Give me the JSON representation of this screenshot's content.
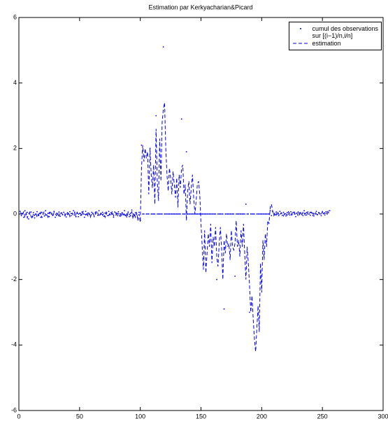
{
  "chart_data": {
    "type": "line",
    "title": "Estimation par Kerkyacharian&Picard",
    "x": [
      1,
      2,
      3,
      4,
      5,
      6,
      7,
      8,
      9,
      10,
      11,
      12,
      13,
      14,
      15,
      16,
      17,
      18,
      19,
      20,
      21,
      22,
      23,
      24,
      25,
      26,
      27,
      28,
      29,
      30,
      31,
      32,
      33,
      34,
      35,
      36,
      37,
      38,
      39,
      40,
      41,
      42,
      43,
      44,
      45,
      46,
      47,
      48,
      49,
      50,
      51,
      52,
      53,
      54,
      55,
      56,
      57,
      58,
      59,
      60,
      61,
      62,
      63,
      64,
      65,
      66,
      67,
      68,
      69,
      70,
      71,
      72,
      73,
      74,
      75,
      76,
      77,
      78,
      79,
      80,
      81,
      82,
      83,
      84,
      85,
      86,
      87,
      88,
      89,
      90,
      91,
      92,
      93,
      94,
      95,
      96,
      97,
      98,
      99,
      100,
      101,
      102,
      103,
      104,
      105,
      106,
      107,
      108,
      109,
      110,
      111,
      112,
      113,
      114,
      115,
      116,
      117,
      118,
      119,
      120,
      121,
      122,
      123,
      124,
      125,
      126,
      127,
      128,
      129,
      130,
      131,
      132,
      133,
      134,
      135,
      136,
      137,
      138,
      139,
      140,
      141,
      142,
      143,
      144,
      145,
      146,
      147,
      148,
      149,
      150,
      151,
      152,
      153,
      154,
      155,
      156,
      157,
      158,
      159,
      160,
      161,
      162,
      163,
      164,
      165,
      166,
      167,
      168,
      169,
      170,
      171,
      172,
      173,
      174,
      175,
      176,
      177,
      178,
      179,
      180,
      181,
      182,
      183,
      184,
      185,
      186,
      187,
      188,
      189,
      190,
      191,
      192,
      193,
      194,
      195,
      196,
      197,
      198,
      199,
      200,
      201,
      202,
      203,
      204,
      205,
      206,
      207,
      208,
      209,
      210,
      211,
      212,
      213,
      214,
      215,
      216,
      217,
      218,
      219,
      220,
      221,
      222,
      223,
      224,
      225,
      226,
      227,
      228,
      229,
      230,
      231,
      232,
      233,
      234,
      235,
      236,
      237,
      238,
      239,
      240,
      241,
      242,
      243,
      244,
      245,
      246,
      247,
      248,
      249,
      250,
      251,
      252,
      253,
      254,
      255,
      256
    ],
    "series": [
      {
        "name": "cumul des observations\nsur [(i−1)/n,i/n]",
        "color": "#0000ff",
        "style": "dots",
        "values": [
          0.08,
          -0.05,
          0.02,
          -0.1,
          0.1,
          -0.02,
          0.05,
          -0.15,
          0.0,
          0.06,
          -0.08,
          0.04,
          -0.12,
          0.0,
          0.07,
          -0.05,
          0.02,
          -0.1,
          0.05,
          0.0,
          -0.06,
          0.1,
          -0.03,
          0.02,
          -0.08,
          0.05,
          0.0,
          -0.04,
          0.08,
          -0.1,
          0.02,
          0.0,
          0.06,
          -0.07,
          0.03,
          -0.02,
          0.05,
          0.0,
          -0.09,
          0.04,
          0.0,
          0.07,
          -0.05,
          0.02,
          0.1,
          -0.03,
          0.0,
          0.05,
          -0.08,
          0.02,
          -0.04,
          0.06,
          0.0,
          -0.1,
          0.08,
          -0.02,
          0.03,
          0.0,
          -0.06,
          0.05,
          0.02,
          -0.08,
          0.0,
          0.06,
          -0.04,
          0.1,
          -0.02,
          0.0,
          0.05,
          -0.07,
          0.03,
          0.0,
          -0.05,
          0.08,
          -0.02,
          0.04,
          0.0,
          -0.1,
          0.06,
          -0.03,
          0.02,
          0.07,
          -0.06,
          0.0,
          0.04,
          -0.02,
          0.1,
          -0.05,
          0.0,
          0.06,
          -0.08,
          0.02,
          0.12,
          0.0,
          -0.05,
          0.04,
          0.0,
          -0.15,
          0.05,
          -0.2,
          2.1,
          0,
          0,
          1.9,
          0,
          0,
          0,
          2.0,
          0,
          0,
          0,
          0,
          3.0,
          0,
          0,
          0,
          0,
          0,
          5.1,
          0,
          0,
          0,
          0,
          0,
          0,
          0,
          0,
          0,
          0,
          0,
          0,
          0,
          0,
          2.9,
          0,
          0,
          0,
          1.9,
          0,
          0,
          0,
          0,
          0,
          0,
          0,
          0,
          0,
          0,
          0,
          0,
          0,
          0,
          0,
          0,
          0,
          0,
          0,
          0,
          0,
          0,
          0,
          0,
          -2.0,
          0,
          0,
          0,
          0,
          0,
          -2.9,
          0,
          0,
          0,
          0,
          0,
          0,
          0,
          0,
          -1.9,
          0,
          0,
          0,
          0,
          0,
          0,
          0,
          0,
          0.3,
          0,
          0,
          -3.0,
          0,
          0,
          0,
          0,
          -4.1,
          0,
          0,
          0,
          0,
          0,
          0,
          0,
          0,
          0,
          0,
          0,
          0.1,
          -0.05,
          0.08,
          0.0,
          -0.03,
          0.06,
          0.0,
          -0.05,
          0.08,
          0.02,
          -0.04,
          0.05,
          0.0,
          -0.06,
          0.04,
          0.0,
          -0.03,
          0.07,
          -0.02,
          0.05,
          0.0,
          -0.08,
          0.03,
          0.06,
          -0.02,
          0.04,
          0.0,
          -0.05,
          0.1,
          0.02,
          -0.03,
          0.06,
          0.0,
          -0.04,
          0.05,
          0.02,
          -0.06,
          0.0,
          0.08,
          -0.02,
          0.04,
          0.0,
          -0.05,
          0.06,
          0.02,
          -0.03,
          0.07,
          0.0,
          0.04,
          0.1
        ]
      },
      {
        "name": "estimation",
        "color": "#0000ff",
        "style": "dashed",
        "values": [
          0.05,
          0.02,
          -0.05,
          0.08,
          -0.1,
          0.03,
          -0.12,
          0.0,
          0.06,
          -0.08,
          -0.15,
          0.02,
          -0.05,
          0.04,
          -0.1,
          0.0,
          -0.06,
          0.05,
          -0.12,
          0.02,
          0.08,
          -0.04,
          0.0,
          -0.1,
          0.05,
          -0.02,
          0.03,
          -0.08,
          0.06,
          0.0,
          -0.05,
          0.04,
          -0.1,
          0.02,
          0.07,
          -0.03,
          0.0,
          -0.06,
          0.04,
          -0.02,
          0.05,
          -0.08,
          0.02,
          0.0,
          -0.05,
          0.06,
          -0.1,
          0.03,
          0.0,
          -0.04,
          0.02,
          -0.06,
          0.08,
          0.0,
          -0.03,
          0.05,
          -0.08,
          0.02,
          -0.1,
          0.04,
          0.0,
          -0.05,
          0.06,
          -0.02,
          0.03,
          -0.08,
          0.0,
          0.05,
          -0.04,
          0.02,
          -0.1,
          0.06,
          0.0,
          -0.05,
          0.03,
          -0.02,
          0.08,
          -0.06,
          0.0,
          0.04,
          -0.08,
          0.02,
          0.05,
          -0.1,
          0.0,
          0.06,
          -0.04,
          0.02,
          -0.12,
          0.05,
          0.0,
          -0.06,
          0.08,
          -0.15,
          0.03,
          -0.1,
          0.06,
          -0.2,
          0.0,
          -0.25,
          1.4,
          2.1,
          1.6,
          2.0,
          1.7,
          1.9,
          0.6,
          2.0,
          1.2,
          0.8,
          1.5,
          0.3,
          2.6,
          1.0,
          0.4,
          2.3,
          1.0,
          2.8,
          3.2,
          3.4,
          2.0,
          1.2,
          0.7,
          1.4,
          1.1,
          0.6,
          1.3,
          0.9,
          0.5,
          1.1,
          0.2,
          1.2,
          0.8,
          1.4,
          1.5,
          0.6,
          0.9,
          -0.2,
          0.7,
          1.0,
          0.3,
          0.8,
          1.2,
          0.5,
          0.0,
          0.4,
          0.9,
          1.0,
          0.6,
          -0.3,
          -1.0,
          -1.7,
          -0.5,
          -1.8,
          -1.2,
          -0.6,
          -1.0,
          -0.3,
          -1.5,
          -0.7,
          -1.0,
          -0.4,
          -1.3,
          -1.6,
          -0.9,
          -0.4,
          -1.1,
          -2.0,
          -0.8,
          -1.2,
          -0.6,
          -1.0,
          -0.9,
          -1.4,
          -0.5,
          -1.0,
          -1.1,
          -0.9,
          -0.2,
          -1.0,
          -0.8,
          -1.3,
          -0.5,
          -1.0,
          -0.3,
          -1.2,
          -2.0,
          -1.0,
          -1.5,
          -2.2,
          -3.0,
          -2.5,
          -3.2,
          -3.8,
          -4.2,
          -3.5,
          -2.8,
          -3.6,
          -1.5,
          -2.4,
          -0.8,
          -1.4,
          -0.6,
          -1.0,
          -0.2,
          -0.3,
          0.2,
          0.3,
          0.1,
          -0.05,
          0.05,
          -0.03,
          0.08,
          0.0,
          -0.05,
          0.04,
          0.02,
          -0.06,
          0.05,
          0.0,
          -0.04,
          0.07,
          0.02,
          -0.05,
          0.03,
          0.0,
          0.06,
          -0.03,
          0.02,
          -0.06,
          0.04,
          0.0,
          -0.05,
          0.08,
          0.02,
          -0.04,
          0.05,
          0.0,
          -0.02,
          0.06,
          0.03,
          -0.05,
          0.02,
          0.07,
          0.0,
          -0.04,
          0.05,
          0.02,
          -0.03,
          0.08,
          0.0,
          0.04,
          -0.02,
          0.05,
          0.1,
          0.06
        ]
      }
    ],
    "xlim": [
      0,
      300
    ],
    "xticks": [
      0,
      50,
      100,
      150,
      200,
      250,
      300
    ],
    "ylim": [
      -6,
      6
    ],
    "yticks": [
      -6,
      -4,
      -2,
      0,
      2,
      4,
      6
    ],
    "grid": false,
    "legend": "upper right"
  }
}
